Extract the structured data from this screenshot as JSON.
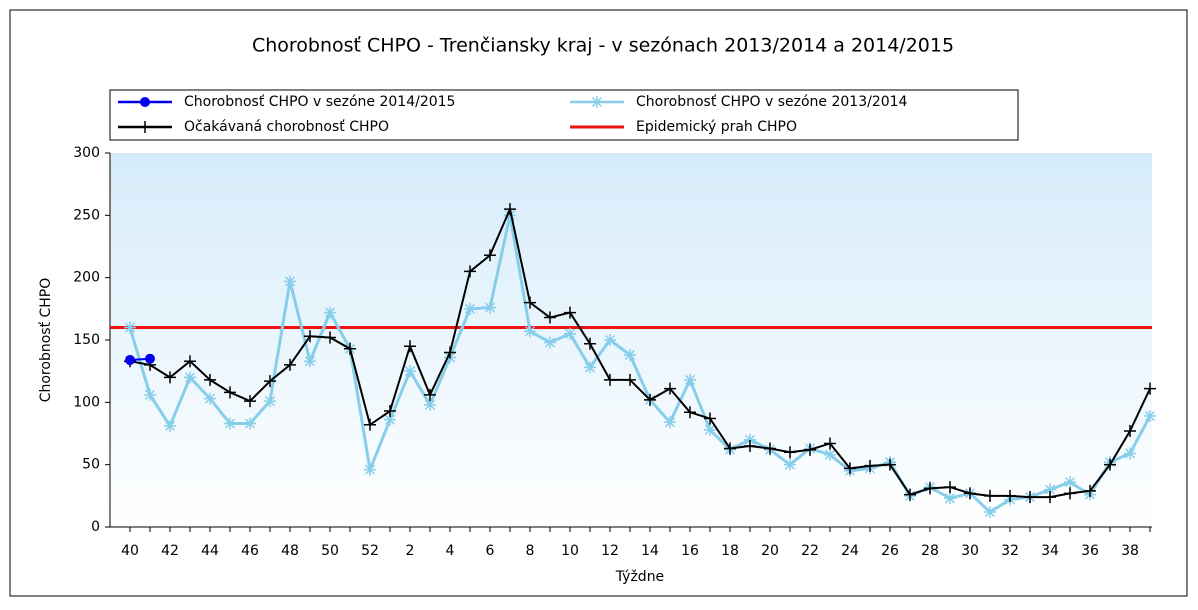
{
  "chart_data": {
    "type": "line",
    "title": "Chorobnosť CHPO - Trenčiansky kraj - v sezónach 2013/2014 a 2014/2015",
    "x_label": "Týždne",
    "y_label": "Chorobnosť CHPO",
    "categories": [
      "40",
      null,
      "42",
      null,
      "44",
      null,
      "46",
      null,
      "48",
      null,
      "50",
      null,
      "52",
      null,
      "2",
      null,
      "4",
      null,
      "6",
      null,
      "8",
      null,
      "10",
      null,
      "12",
      null,
      "14",
      null,
      "16",
      null,
      "18",
      null,
      "20",
      null,
      "22",
      null,
      "24",
      null,
      "26",
      null,
      "28",
      null,
      "30",
      null,
      "32",
      null,
      "34",
      null,
      "36",
      null,
      "38",
      null
    ],
    "ylim": [
      0,
      300
    ],
    "yticks": [
      0,
      50,
      100,
      150,
      200,
      250,
      300
    ],
    "series": [
      {
        "name": "Chorobnosť CHPO v sezóne 2014/2015",
        "color": "#0000ee",
        "marker": "dot",
        "values": [
          134,
          135,
          null,
          null,
          null,
          null,
          null,
          null,
          null,
          null,
          null,
          null,
          null,
          null,
          null,
          null,
          null,
          null,
          null,
          null,
          null,
          null,
          null,
          null,
          null,
          null,
          null,
          null,
          null,
          null,
          null,
          null,
          null,
          null,
          null,
          null,
          null,
          null,
          null,
          null,
          null,
          null,
          null,
          null,
          null,
          null,
          null,
          null,
          null,
          null,
          null,
          null
        ]
      },
      {
        "name": "Chorobnosť CHPO v sezóne 2013/2014",
        "color": "#87ceeb",
        "marker": "star",
        "values": [
          160,
          106,
          81,
          120,
          103,
          83,
          83,
          101,
          197,
          133,
          172,
          143,
          46,
          86,
          125,
          98,
          136,
          175,
          176,
          250,
          157,
          148,
          155,
          128,
          150,
          138,
          102,
          84,
          118,
          78,
          62,
          70,
          62,
          50,
          63,
          58,
          45,
          47,
          52,
          25,
          32,
          23,
          27,
          12,
          22,
          24,
          30,
          36,
          26,
          52,
          59,
          89
        ]
      },
      {
        "name": "Očakávaná chorobnosť CHPO",
        "color": "#000000",
        "marker": "plus",
        "values": [
          133,
          130,
          120,
          133,
          118,
          108,
          101,
          117,
          130,
          153,
          152,
          143,
          82,
          93,
          145,
          106,
          140,
          205,
          218,
          255,
          180,
          168,
          172,
          147,
          118,
          118,
          102,
          111,
          92,
          87,
          63,
          65,
          63,
          60,
          62,
          67,
          47,
          49,
          50,
          26,
          31,
          32,
          27,
          25,
          25,
          24,
          24,
          27,
          29,
          50,
          77,
          111
        ]
      }
    ],
    "threshold": {
      "name": "Epidemický prah CHPO",
      "color": "#ee1111",
      "value": 160
    }
  }
}
